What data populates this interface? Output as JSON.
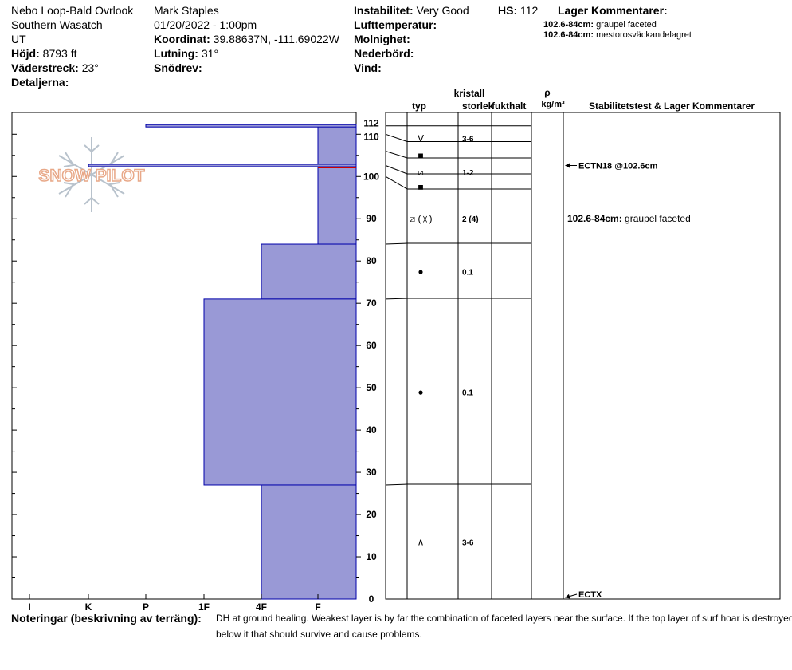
{
  "header": {
    "location": "Nebo Loop-Bald Ovrlook",
    "range": "Southern Wasatch",
    "state": "UT",
    "elevation_label": "Höjd:",
    "elevation": "8793 ft",
    "aspect_label": "Väderstreck:",
    "aspect": "23°",
    "details_label": "Detaljerna:",
    "observer": "Mark Staples",
    "datetime": "01/20/2022 - 1:00pm",
    "coord_label": "Koordinat:",
    "coordinates": "39.88637N, -111.69022W",
    "slope_label": "Lutning:",
    "slope": "31°",
    "drift_label": "Snödrev:",
    "instability_label": "Instabilitet:",
    "instability": "Very Good",
    "hs_label": "HS:",
    "hs": "112",
    "airtemp_label": "Lufttemperatur:",
    "cloud_label": "Molnighet:",
    "precip_label": "Nederbörd:",
    "wind_label": "Vind:",
    "layer_comments_label": "Lager Kommentarer:",
    "layer_comments": [
      {
        "range": "102.6-84cm:",
        "text": "graupel faceted"
      },
      {
        "range": "102.6-84cm:",
        "text": "mestorosväckandelagret"
      }
    ]
  },
  "logo": {
    "text": "SNOW PILOT"
  },
  "columns": {
    "kristall": "kristall",
    "typ": "typ",
    "storlek": "storlek",
    "fukthalt": "fukthalt",
    "rho": "ρ",
    "density_unit": "kg/m³",
    "stability": "Stabilitetstest & Lager Kommentarer"
  },
  "chart_data": {
    "type": "snow_profile",
    "hs": 112,
    "y_axis": {
      "min": 0,
      "max": 112,
      "ticks": [
        0,
        10,
        20,
        30,
        40,
        50,
        60,
        70,
        80,
        90,
        100,
        110,
        112
      ]
    },
    "hardness_scale": [
      "I",
      "K",
      "P",
      "1F",
      "4F",
      "F"
    ],
    "hardness_layers": [
      {
        "top": 112,
        "bottom": 84,
        "hardness": "F"
      },
      {
        "top": 84,
        "bottom": 71,
        "hardness": "4F"
      },
      {
        "top": 71,
        "bottom": 27,
        "hardness": "1F"
      },
      {
        "top": 27,
        "bottom": 0,
        "hardness": "4F"
      }
    ],
    "thin_layers": [
      {
        "height": 112,
        "hardness": "P"
      },
      {
        "height": 102.6,
        "hardness": "K"
      }
    ],
    "red_marker": {
      "height": 102.6
    },
    "layer_boundaries": [
      112,
      110,
      106,
      102.6,
      100,
      84,
      71,
      27,
      0
    ],
    "crystals": [
      {
        "height": 109,
        "symbol": "V",
        "size": "3-6"
      },
      {
        "height": 105,
        "symbol": "■",
        "size": ""
      },
      {
        "height": 101,
        "symbol": "⧄",
        "size": "1-2"
      },
      {
        "height": 97.5,
        "symbol": "■",
        "size": ""
      },
      {
        "height": 90,
        "symbol": "⧄ (⚹)",
        "size": "2 (4)"
      },
      {
        "height": 77.5,
        "symbol": "●",
        "size": "0.1"
      },
      {
        "height": 49,
        "symbol": "●",
        "size": "0.1"
      },
      {
        "height": 13.5,
        "symbol": "∧",
        "size": "3-6"
      }
    ],
    "tests": [
      {
        "height": 102.6,
        "label": "ECTN18 @102.6cm"
      },
      {
        "height": 0,
        "label": "ECTX"
      }
    ],
    "comments": [
      {
        "height": 90,
        "range": "102.6-84cm:",
        "text": "graupel faceted"
      }
    ]
  },
  "notes": {
    "label": "Noteringar (beskrivning av terräng):",
    "line1": "DH at ground healing. Weakest layer is by far the combination of faceted layers near the surface. If the top layer of surf hoar is destroyed",
    "line2": "below it that should survive and cause problems."
  }
}
